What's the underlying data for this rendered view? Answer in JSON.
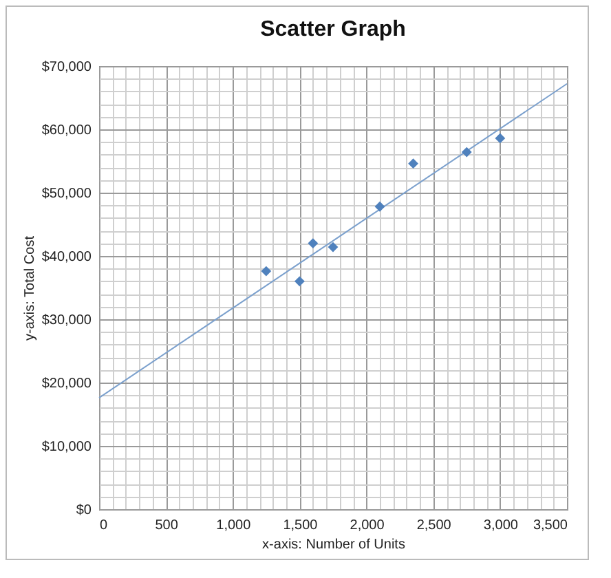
{
  "chart_data": {
    "type": "scatter",
    "title": "Scatter Graph",
    "xlabel": "x-axis: Number of Units",
    "ylabel": "y-axis: Total Cost",
    "series": [
      {
        "marker": "diamond",
        "color": "#4f81bd",
        "x": [
          1250,
          1500,
          1600,
          1750,
          2100,
          2350,
          2750,
          3000
        ],
        "values": [
          37600,
          36000,
          42000,
          41400,
          47800,
          54600,
          56400,
          58600
        ]
      },
      {
        "type": "line",
        "color": "#7ba0cd",
        "x": [
          0,
          3500
        ],
        "values": [
          17600,
          67200
        ]
      }
    ],
    "xlim": [
      0,
      3500
    ],
    "ylim": [
      0,
      70000
    ],
    "xticks": [
      {
        "value": 0,
        "label": "0"
      },
      {
        "value": 100,
        "label": null
      },
      {
        "value": 200,
        "label": null
      },
      {
        "value": 300,
        "label": null
      },
      {
        "value": 400,
        "label": null
      },
      {
        "value": 500,
        "label": "500"
      },
      {
        "value": 600,
        "label": null
      },
      {
        "value": 700,
        "label": null
      },
      {
        "value": 800,
        "label": null
      },
      {
        "value": 900,
        "label": null
      },
      {
        "value": 1000,
        "label": "1,000"
      },
      {
        "value": 1100,
        "label": null
      },
      {
        "value": 1200,
        "label": null
      },
      {
        "value": 1300,
        "label": null
      },
      {
        "value": 1400,
        "label": null
      },
      {
        "value": 1500,
        "label": "1,500"
      },
      {
        "value": 1600,
        "label": null
      },
      {
        "value": 1700,
        "label": null
      },
      {
        "value": 1800,
        "label": null
      },
      {
        "value": 1900,
        "label": null
      },
      {
        "value": 2000,
        "label": "2,000"
      },
      {
        "value": 2100,
        "label": null
      },
      {
        "value": 2200,
        "label": null
      },
      {
        "value": 2300,
        "label": null
      },
      {
        "value": 2400,
        "label": null
      },
      {
        "value": 2500,
        "label": "2,500"
      },
      {
        "value": 2600,
        "label": null
      },
      {
        "value": 2700,
        "label": null
      },
      {
        "value": 2800,
        "label": null
      },
      {
        "value": 2900,
        "label": null
      },
      {
        "value": 3000,
        "label": "3,000"
      },
      {
        "value": 3100,
        "label": null
      },
      {
        "value": 3200,
        "label": null
      },
      {
        "value": 3300,
        "label": null
      },
      {
        "value": 3400,
        "label": null
      },
      {
        "value": 3500,
        "label": "3,500"
      }
    ],
    "yticks": [
      {
        "value": 0,
        "label": "$0"
      },
      {
        "value": 2000,
        "label": null
      },
      {
        "value": 4000,
        "label": null
      },
      {
        "value": 6000,
        "label": null
      },
      {
        "value": 8000,
        "label": null
      },
      {
        "value": 10000,
        "label": "$10,000"
      },
      {
        "value": 12000,
        "label": null
      },
      {
        "value": 14000,
        "label": null
      },
      {
        "value": 16000,
        "label": null
      },
      {
        "value": 18000,
        "label": null
      },
      {
        "value": 20000,
        "label": "$20,000"
      },
      {
        "value": 22000,
        "label": null
      },
      {
        "value": 24000,
        "label": null
      },
      {
        "value": 26000,
        "label": null
      },
      {
        "value": 28000,
        "label": null
      },
      {
        "value": 30000,
        "label": "$30,000"
      },
      {
        "value": 32000,
        "label": null
      },
      {
        "value": 34000,
        "label": null
      },
      {
        "value": 36000,
        "label": null
      },
      {
        "value": 38000,
        "label": null
      },
      {
        "value": 40000,
        "label": "$40,000"
      },
      {
        "value": 42000,
        "label": null
      },
      {
        "value": 44000,
        "label": null
      },
      {
        "value": 46000,
        "label": null
      },
      {
        "value": 48000,
        "label": null
      },
      {
        "value": 50000,
        "label": "$50,000"
      },
      {
        "value": 52000,
        "label": null
      },
      {
        "value": 54000,
        "label": null
      },
      {
        "value": 56000,
        "label": null
      },
      {
        "value": 58000,
        "label": null
      },
      {
        "value": 60000,
        "label": "$60,000"
      },
      {
        "value": 62000,
        "label": null
      },
      {
        "value": 64000,
        "label": null
      },
      {
        "value": 66000,
        "label": null
      },
      {
        "value": 68000,
        "label": null
      },
      {
        "value": 70000,
        "label": "$70,000"
      }
    ],
    "grid": true
  }
}
